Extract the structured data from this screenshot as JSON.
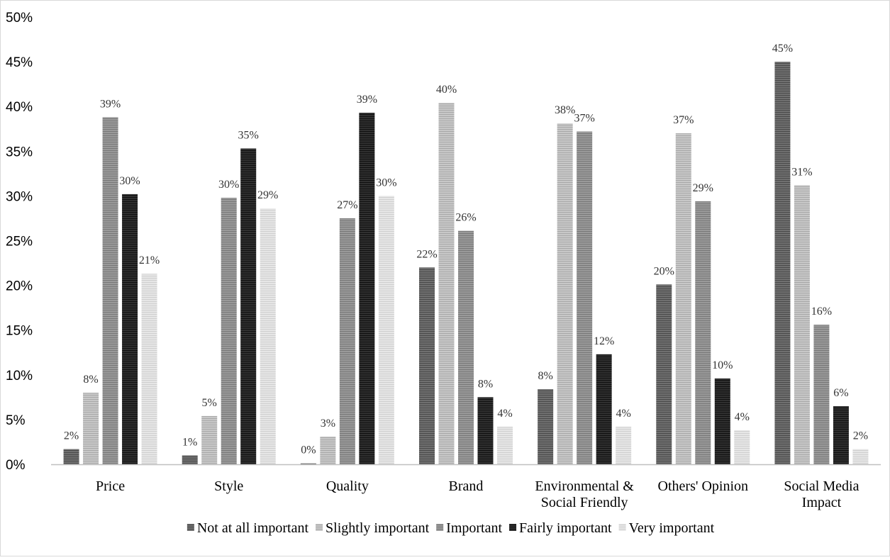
{
  "chart_data": {
    "type": "bar",
    "title": "",
    "xlabel": "",
    "ylabel": "",
    "ylim": [
      0,
      50
    ],
    "y_ticks": [
      "0%",
      "5%",
      "10%",
      "15%",
      "20%",
      "25%",
      "30%",
      "35%",
      "40%",
      "45%",
      "50%"
    ],
    "grid": false,
    "legend_position": "bottom",
    "categories": [
      [
        "Price"
      ],
      [
        "Style"
      ],
      [
        "Quality"
      ],
      [
        "Brand"
      ],
      [
        "Environmental &",
        "Social Friendly"
      ],
      [
        "Others' Opinion"
      ],
      [
        "Social Media",
        "Impact"
      ]
    ],
    "series": [
      {
        "name": "Not at all important",
        "color": "#707070",
        "stripe": "#4a4a4a",
        "values": [
          1.7,
          1.0,
          0.1,
          22.0,
          8.4,
          20.1,
          45.0
        ],
        "labels": [
          "2%",
          "1%",
          "0%",
          "22%",
          "8%",
          "20%",
          "45%"
        ]
      },
      {
        "name": "Slightly important",
        "color": "#c8c8c8",
        "stripe": "#a8a8a8",
        "values": [
          8.0,
          5.4,
          3.1,
          40.4,
          38.1,
          37.0,
          31.2
        ],
        "labels": [
          "8%",
          "5%",
          "3%",
          "40%",
          "38%",
          "37%",
          "31%"
        ]
      },
      {
        "name": "Important",
        "color": "#9a9a9a",
        "stripe": "#787878",
        "values": [
          38.8,
          29.8,
          27.5,
          26.1,
          37.2,
          29.4,
          15.6
        ],
        "labels": [
          "39%",
          "30%",
          "27%",
          "26%",
          "37%",
          "29%",
          "16%"
        ]
      },
      {
        "name": "Fairly important",
        "color": "#303030",
        "stripe": "#101010",
        "values": [
          30.2,
          35.3,
          39.3,
          7.5,
          12.3,
          9.6,
          6.5
        ],
        "labels": [
          "30%",
          "35%",
          "39%",
          "8%",
          "12%",
          "10%",
          "6%"
        ]
      },
      {
        "name": "Very important",
        "color": "#e6e6e6",
        "stripe": "#cfcfcf",
        "values": [
          21.3,
          28.6,
          30.0,
          4.2,
          4.2,
          3.8,
          1.7
        ],
        "labels": [
          "21%",
          "29%",
          "30%",
          "4%",
          "4%",
          "4%",
          "2%"
        ]
      }
    ]
  }
}
